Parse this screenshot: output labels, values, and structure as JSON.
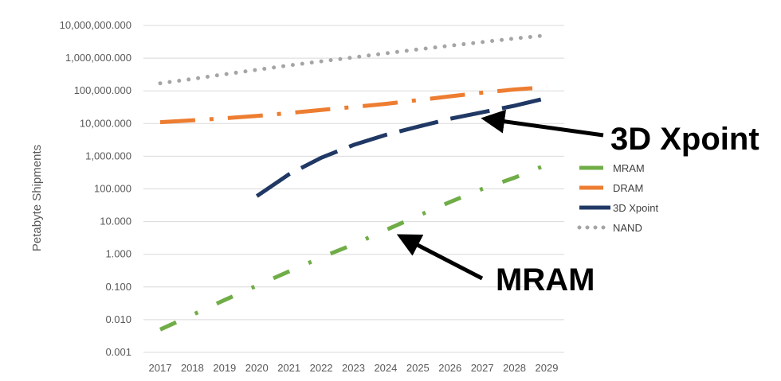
{
  "chart_data": {
    "type": "line",
    "y_scale": "log",
    "ylabel": "Petabyte Shipments",
    "xlabel": "",
    "title": "",
    "ylim": [
      0.001,
      10000000
    ],
    "y_ticks": [
      "0.001",
      "0.010",
      "0.100",
      "1.000",
      "10.000",
      "100.000",
      "1,000.000",
      "10,000.000",
      "100,000.000",
      "1,000,000.000",
      "10,000,000.000"
    ],
    "x": [
      "2017",
      "2018",
      "2019",
      "2020",
      "2021",
      "2022",
      "2023",
      "2024",
      "2025",
      "2026",
      "2027",
      "2028",
      "2029"
    ],
    "grid": true,
    "legend_position": "right",
    "series": [
      {
        "name": "MRAM",
        "color": "#70ad47",
        "dash": "dash-dot",
        "values": [
          0.005,
          0.014,
          0.04,
          0.11,
          0.3,
          0.8,
          2,
          5.5,
          15,
          40,
          100,
          220,
          550
        ]
      },
      {
        "name": "DRAM",
        "color": "#ed7d31",
        "dash": "long-dash-dot",
        "values": [
          11000,
          12500,
          14500,
          17000,
          21000,
          26000,
          32000,
          40000,
          52000,
          68000,
          88000,
          110000,
          130000
        ]
      },
      {
        "name": "3D Xpoint",
        "color": "#203864",
        "dash": "long-dash",
        "values": [
          null,
          null,
          null,
          60,
          280,
          900,
          2200,
          4500,
          8000,
          14000,
          22000,
          35000,
          60000
        ]
      },
      {
        "name": "NAND",
        "color": "#a5a5a5",
        "dash": "dot",
        "values": [
          170000,
          230000,
          320000,
          440000,
          600000,
          800000,
          1050000,
          1400000,
          1850000,
          2400000,
          3100000,
          4000000,
          5000000
        ]
      }
    ],
    "annotations": [
      {
        "text": "3D Xpoint",
        "series": "3D Xpoint",
        "points_to_x": "2027"
      },
      {
        "text": "MRAM",
        "series": "MRAM",
        "points_to_x": "2024"
      }
    ]
  }
}
